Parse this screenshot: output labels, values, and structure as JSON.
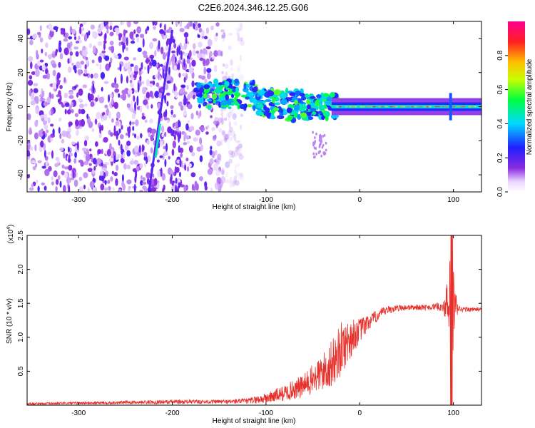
{
  "page_title": "C2E6.2024.346.12.25.G06",
  "chart_data": [
    {
      "type": "heatmap",
      "title": "C2E6.2024.346.12.25.G06",
      "xlabel": "Height of straight line (km)",
      "ylabel": "Frequency (Hz)",
      "xlim": [
        -355,
        130
      ],
      "ylim": [
        -50,
        50
      ],
      "xticks": [
        -300,
        -200,
        -100,
        0,
        100
      ],
      "xtick_labels": [
        "-300",
        "-200",
        "-100",
        "0",
        "100"
      ],
      "yticks": [
        -40,
        -20,
        0,
        20,
        40
      ],
      "ytick_labels": [
        "-40",
        "-20",
        "0",
        "20",
        "40"
      ],
      "colorbar": {
        "label": "Normalized spectral amplitude",
        "range": [
          0,
          1
        ],
        "ticks": [
          0.0,
          0.2,
          0.4,
          0.6,
          0.8
        ],
        "tick_labels": [
          "0.0",
          "0.2",
          "0.4",
          "0.6",
          "0.8"
        ],
        "colormap": "rainbow (white-lavender → violet → blue → cyan → green → yellow → orange → red → magenta)"
      },
      "features": {
        "noise_region_x": [
          -355,
          -140
        ],
        "signal_center_frequency": 0,
        "signal_start_x": -175,
        "strong_line_x": [
          -30,
          130
        ],
        "diagonal_streak": [
          {
            "x": -225,
            "y": -50
          },
          {
            "x": -200,
            "y": 45
          }
        ],
        "blip_at_x": 97
      }
    },
    {
      "type": "line",
      "xlabel": "Height of straight line (km)",
      "ylabel": "SNR (10 * v/v)",
      "y_scale_label": "(x10^4)",
      "y_scale_base": "(x10",
      "y_scale_exp": "4",
      "xlim": [
        -355,
        130
      ],
      "ylim": [
        0,
        2.5
      ],
      "xticks": [
        -300,
        -200,
        -100,
        0,
        100
      ],
      "xtick_labels": [
        "-300",
        "-200",
        "-100",
        "0",
        "100"
      ],
      "yticks": [
        0.5,
        1.0,
        1.5,
        2.0,
        2.5
      ],
      "ytick_labels": [
        "0.5",
        "1.0",
        "1.5",
        "2.0",
        "2.5"
      ],
      "series_color": "#e8302a",
      "envelope": {
        "x": [
          -355,
          -300,
          -200,
          -150,
          -120,
          -100,
          -80,
          -60,
          -50,
          -40,
          -30,
          -20,
          -10,
          0,
          10,
          20,
          30,
          40,
          50,
          60,
          70,
          80,
          90,
          95,
          98,
          100,
          102,
          105,
          110,
          120,
          130
        ],
        "y": [
          0.02,
          0.03,
          0.05,
          0.05,
          0.06,
          0.1,
          0.18,
          0.28,
          0.38,
          0.48,
          0.6,
          0.82,
          0.98,
          1.1,
          1.22,
          1.33,
          1.4,
          1.43,
          1.44,
          1.44,
          1.44,
          1.45,
          1.45,
          1.4,
          1.3,
          1.4,
          1.42,
          1.42,
          1.41,
          1.41,
          1.41
        ],
        "noise": [
          0.015,
          0.02,
          0.03,
          0.03,
          0.04,
          0.08,
          0.12,
          0.18,
          0.22,
          0.28,
          0.35,
          0.4,
          0.3,
          0.18,
          0.12,
          0.08,
          0.06,
          0.05,
          0.04,
          0.04,
          0.04,
          0.05,
          0.08,
          0.6,
          1.1,
          0.9,
          0.3,
          0.06,
          0.04,
          0.03,
          0.03
        ]
      }
    }
  ]
}
